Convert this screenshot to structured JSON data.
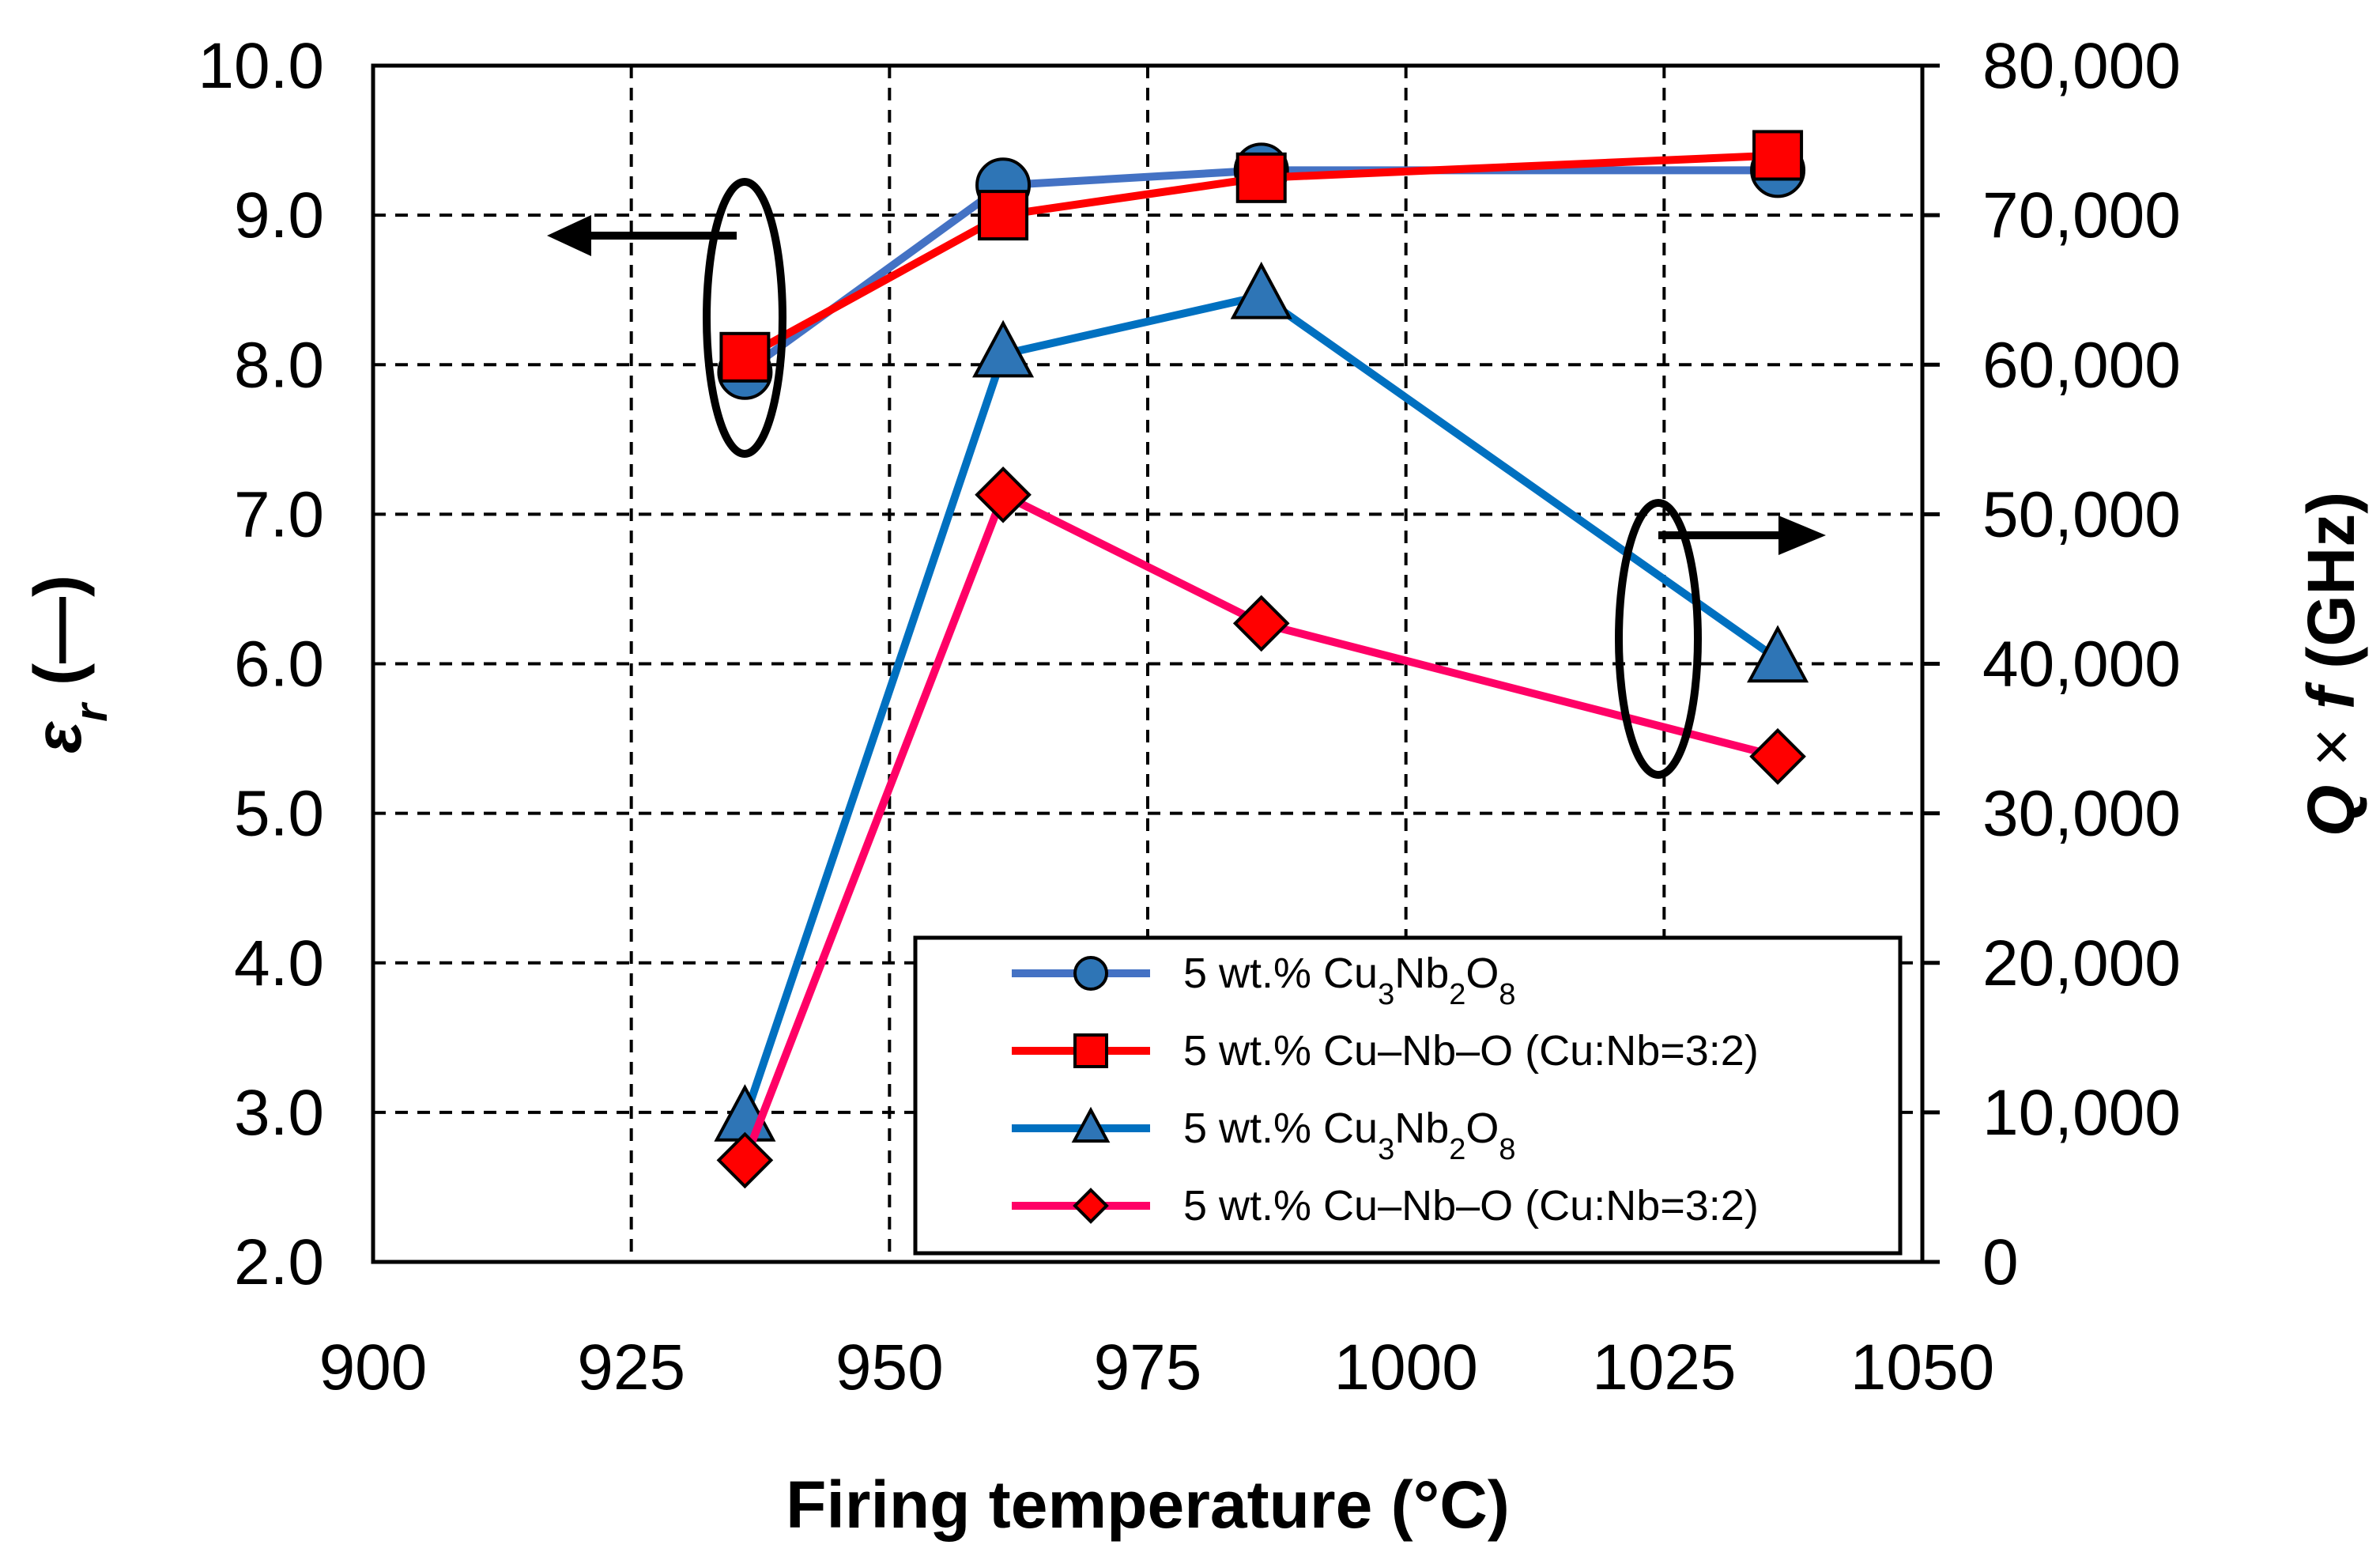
{
  "chart_data": {
    "type": "line",
    "title": "",
    "xlabel": "Firing temperature (°C)",
    "ylabel_left": {
      "symbol": "ε",
      "sub": "r",
      "unit": " (—)"
    },
    "ylabel_right": {
      "q": "Q",
      "times": " × ",
      "f": "f",
      "unit": " (GHz)"
    },
    "xlim": [
      900,
      1050
    ],
    "ylim_left": [
      2.0,
      10.0
    ],
    "ylim_right": [
      0,
      80000
    ],
    "x_ticks": [
      "900",
      "925",
      "950",
      "975",
      "1000",
      "1025",
      "1050"
    ],
    "y_left_ticks": [
      "2.0",
      "3.0",
      "4.0",
      "5.0",
      "6.0",
      "7.0",
      "8.0",
      "9.0",
      "10.0"
    ],
    "y_right_ticks": [
      "0",
      "10,000",
      "20,000",
      "30,000",
      "40,000",
      "50,000",
      "60,000",
      "70,000",
      "80,000"
    ],
    "grid": "dashed",
    "legend_position": "bottom-right",
    "series": [
      {
        "name": "5 wt.% Cu3Nb2O8",
        "legend": {
          "pre": "5 wt.% Cu",
          "s1": "3",
          "m1": "Nb",
          "s2": "2",
          "m2": "O",
          "s3": "8"
        },
        "axis": "left",
        "marker": "circle",
        "line_color": "#4472C4",
        "fill": "#2E75B6",
        "x": [
          936,
          961,
          986,
          1036
        ],
        "y": [
          7.95,
          9.2,
          9.3,
          9.3
        ]
      },
      {
        "name": "5 wt.% Cu–Nb–O (Cu:Nb=3:2)",
        "legend": {
          "pre": "5 wt.% Cu–Nb–O (Cu:Nb=3:2)"
        },
        "axis": "left",
        "marker": "square",
        "line_color": "#FF0000",
        "fill": "#FF0000",
        "x": [
          936,
          961,
          986,
          1036
        ],
        "y": [
          8.05,
          9.0,
          9.25,
          9.4
        ]
      },
      {
        "name": "5 wt.% Cu3Nb2O8",
        "legend": {
          "pre": "5 wt.% Cu",
          "s1": "3",
          "m1": "Nb",
          "s2": "2",
          "m2": "O",
          "s3": "8"
        },
        "axis": "right",
        "marker": "triangle",
        "line_color": "#0070C0",
        "fill": "#2E75B6",
        "x": [
          936,
          961,
          986,
          1036
        ],
        "y": [
          9600,
          60700,
          64600,
          40300
        ]
      },
      {
        "name": "5 wt.% Cu–Nb–O (Cu:Nb=3:2)",
        "legend": {
          "pre": "5 wt.% Cu–Nb–O (Cu:Nb=3:2)"
        },
        "axis": "right",
        "marker": "diamond",
        "line_color": "#FF0066",
        "fill": "#FF0000",
        "x": [
          936,
          961,
          986,
          1036
        ],
        "y": [
          6800,
          51300,
          42700,
          33800
        ]
      }
    ]
  }
}
